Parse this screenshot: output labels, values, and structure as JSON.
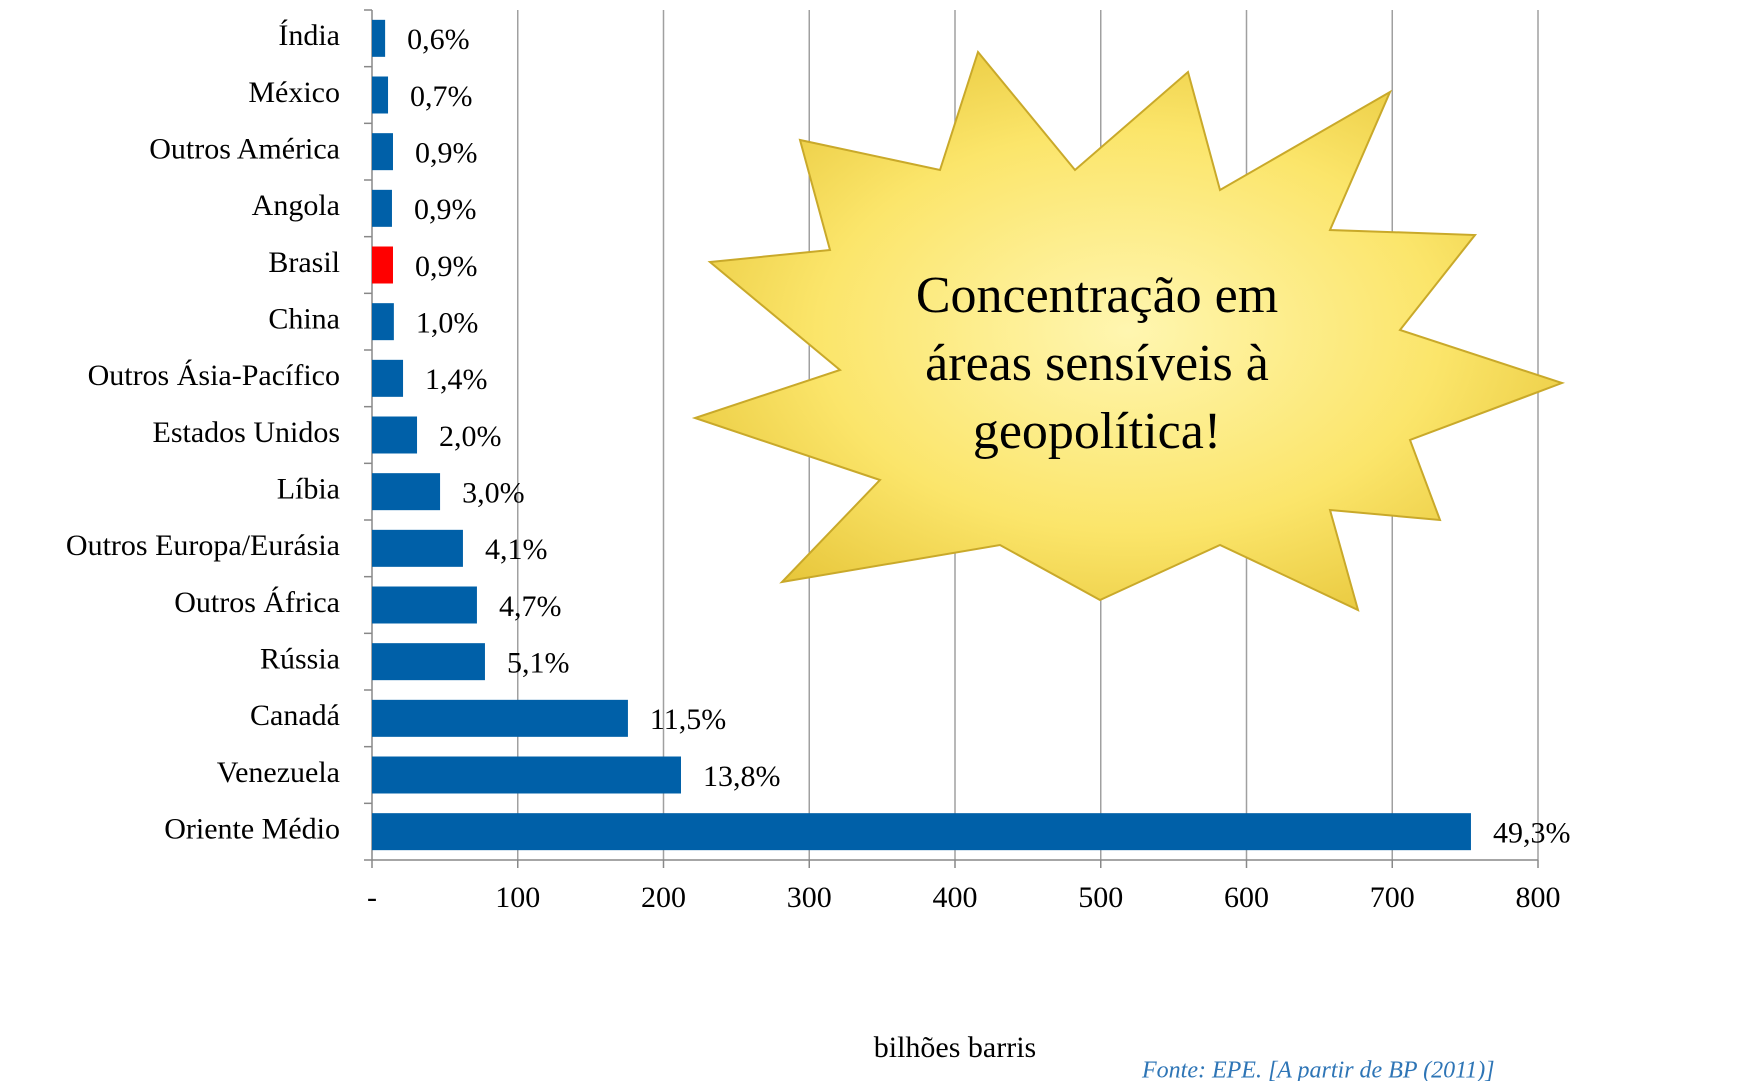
{
  "chart_data": {
    "type": "barh",
    "categories": [
      "Índia",
      "México",
      "Outros América",
      "Angola",
      "Brasil",
      "China",
      "Outros Ásia-Pacífico",
      "Estados Unidos",
      "Líbia",
      "Outros Europa/Eurásia",
      "Outros África",
      "Rússia",
      "Canadá",
      "Venezuela",
      "Oriente Médio"
    ],
    "values": [
      9,
      11,
      14.4,
      13.7,
      14.4,
      15,
      21.3,
      30.9,
      46.7,
      62.4,
      72,
      77.5,
      175.6,
      212,
      754
    ],
    "bar_labels": [
      "0,6%",
      "0,7%",
      "0,9%",
      "0,9%",
      "0,9%",
      "1,0%",
      "1,4%",
      "2,0%",
      "3,0%",
      "4,1%",
      "4,7%",
      "5,1%",
      "11,5%",
      "13,8%",
      "49,3%"
    ],
    "colors": [
      "#0060a8",
      "#0060a8",
      "#0060a8",
      "#0060a8",
      "#ff0000",
      "#0060a8",
      "#0060a8",
      "#0060a8",
      "#0060a8",
      "#0060a8",
      "#0060a8",
      "#0060a8",
      "#0060a8",
      "#0060a8",
      "#0060a8"
    ],
    "xlabel": "bilhões barris",
    "xlim": [
      0,
      800
    ],
    "xticks": [
      {
        "value": 0,
        "label": "-"
      },
      100,
      200,
      300,
      400,
      500,
      600,
      700,
      800
    ],
    "grid": true,
    "annotation": [
      "Concentração em",
      "áreas sensíveis à",
      "geopolítica!"
    ],
    "source": "Fonte: EPE. [A partir de BP (2011)]"
  }
}
